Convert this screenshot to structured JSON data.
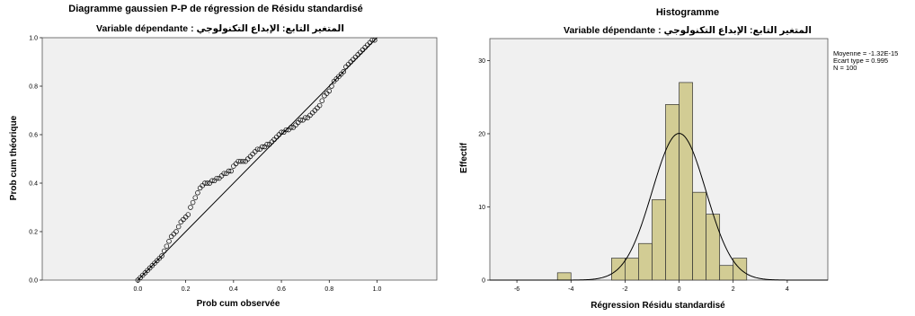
{
  "chart_data": [
    {
      "type": "scatter",
      "title": "Diagramme gaussien P-P de régression de Résidu standardisé",
      "subtitle": "Variable dépendante : المتغير التابع: الإبداع التكنولوجي",
      "xlabel": "Prob cum observée",
      "ylabel": "Prob cum théorique",
      "xlim": [
        -0.4,
        1.25
      ],
      "ylim": [
        0,
        1
      ],
      "x_ticks": [
        "0.0",
        "0.2",
        "0.4",
        "0.6",
        "0.8",
        "1.0"
      ],
      "y_ticks": [
        "0.0",
        "0.2",
        "0.4",
        "0.6",
        "0.8",
        "1.0"
      ],
      "reference_line": [
        [
          0,
          0
        ],
        [
          1,
          1
        ]
      ],
      "points": [
        [
          0.0,
          0.0
        ],
        [
          0.01,
          0.01
        ],
        [
          0.02,
          0.02
        ],
        [
          0.03,
          0.03
        ],
        [
          0.04,
          0.04
        ],
        [
          0.05,
          0.05
        ],
        [
          0.06,
          0.06
        ],
        [
          0.07,
          0.07
        ],
        [
          0.08,
          0.08
        ],
        [
          0.09,
          0.09
        ],
        [
          0.1,
          0.1
        ],
        [
          0.11,
          0.12
        ],
        [
          0.12,
          0.14
        ],
        [
          0.13,
          0.16
        ],
        [
          0.14,
          0.18
        ],
        [
          0.15,
          0.19
        ],
        [
          0.16,
          0.2
        ],
        [
          0.17,
          0.22
        ],
        [
          0.18,
          0.24
        ],
        [
          0.19,
          0.25
        ],
        [
          0.2,
          0.26
        ],
        [
          0.21,
          0.27
        ],
        [
          0.22,
          0.3
        ],
        [
          0.23,
          0.32
        ],
        [
          0.24,
          0.34
        ],
        [
          0.25,
          0.36
        ],
        [
          0.26,
          0.38
        ],
        [
          0.27,
          0.39
        ],
        [
          0.28,
          0.4
        ],
        [
          0.29,
          0.4
        ],
        [
          0.3,
          0.4
        ],
        [
          0.31,
          0.41
        ],
        [
          0.32,
          0.41
        ],
        [
          0.33,
          0.42
        ],
        [
          0.34,
          0.42
        ],
        [
          0.35,
          0.43
        ],
        [
          0.36,
          0.44
        ],
        [
          0.37,
          0.44
        ],
        [
          0.38,
          0.45
        ],
        [
          0.39,
          0.45
        ],
        [
          0.4,
          0.47
        ],
        [
          0.41,
          0.48
        ],
        [
          0.42,
          0.49
        ],
        [
          0.43,
          0.49
        ],
        [
          0.44,
          0.49
        ],
        [
          0.45,
          0.49
        ],
        [
          0.46,
          0.5
        ],
        [
          0.47,
          0.51
        ],
        [
          0.48,
          0.52
        ],
        [
          0.49,
          0.53
        ],
        [
          0.5,
          0.54
        ],
        [
          0.51,
          0.54
        ],
        [
          0.52,
          0.55
        ],
        [
          0.53,
          0.55
        ],
        [
          0.54,
          0.56
        ],
        [
          0.55,
          0.56
        ],
        [
          0.56,
          0.57
        ],
        [
          0.57,
          0.58
        ],
        [
          0.58,
          0.59
        ],
        [
          0.59,
          0.6
        ],
        [
          0.6,
          0.61
        ],
        [
          0.61,
          0.61
        ],
        [
          0.62,
          0.62
        ],
        [
          0.63,
          0.62
        ],
        [
          0.64,
          0.63
        ],
        [
          0.65,
          0.63
        ],
        [
          0.66,
          0.64
        ],
        [
          0.67,
          0.65
        ],
        [
          0.68,
          0.66
        ],
        [
          0.69,
          0.66
        ],
        [
          0.7,
          0.67
        ],
        [
          0.71,
          0.67
        ],
        [
          0.72,
          0.68
        ],
        [
          0.73,
          0.69
        ],
        [
          0.74,
          0.7
        ],
        [
          0.75,
          0.71
        ],
        [
          0.76,
          0.72
        ],
        [
          0.77,
          0.74
        ],
        [
          0.78,
          0.76
        ],
        [
          0.79,
          0.77
        ],
        [
          0.8,
          0.78
        ],
        [
          0.81,
          0.8
        ],
        [
          0.82,
          0.82
        ],
        [
          0.83,
          0.83
        ],
        [
          0.84,
          0.84
        ],
        [
          0.85,
          0.85
        ],
        [
          0.86,
          0.86
        ],
        [
          0.87,
          0.88
        ],
        [
          0.88,
          0.89
        ],
        [
          0.89,
          0.9
        ],
        [
          0.9,
          0.91
        ],
        [
          0.91,
          0.92
        ],
        [
          0.92,
          0.93
        ],
        [
          0.93,
          0.94
        ],
        [
          0.94,
          0.95
        ],
        [
          0.95,
          0.96
        ],
        [
          0.96,
          0.97
        ],
        [
          0.97,
          0.98
        ],
        [
          0.98,
          0.99
        ],
        [
          0.99,
          0.99
        ]
      ]
    },
    {
      "type": "bar",
      "title": "Histogramme",
      "subtitle": "Variable dépendante : المتغير التابع: الإبداع التكنولوجي",
      "xlabel": "Régression Résidu standardisé",
      "ylabel": "Effectif",
      "xlim": [
        -7,
        5.5
      ],
      "ylim": [
        0,
        33
      ],
      "x_ticks": [
        "-6",
        "-4",
        "-2",
        "0",
        "2",
        "4"
      ],
      "y_ticks": [
        "0",
        "10",
        "20",
        "30"
      ],
      "bin_width": 0.5,
      "bins": [
        {
          "start": -4.5,
          "count": 1
        },
        {
          "start": -2.5,
          "count": 3
        },
        {
          "start": -2.0,
          "count": 3
        },
        {
          "start": -1.5,
          "count": 5
        },
        {
          "start": -1.0,
          "count": 11
        },
        {
          "start": -0.5,
          "count": 24
        },
        {
          "start": 0.0,
          "count": 27
        },
        {
          "start": 0.5,
          "count": 12
        },
        {
          "start": 1.0,
          "count": 9
        },
        {
          "start": 1.5,
          "count": 2
        },
        {
          "start": 2.0,
          "count": 3
        }
      ],
      "normal_curve": {
        "mean": 0,
        "sd": 0.995,
        "n": 100
      },
      "stats": {
        "mean": "Moyenne = -1.32E-15",
        "sd": "Ecart type = 0.995",
        "n": "N = 100"
      },
      "colors": {
        "bar_fill": "#d2cc94",
        "bar_stroke": "#333333"
      }
    }
  ]
}
